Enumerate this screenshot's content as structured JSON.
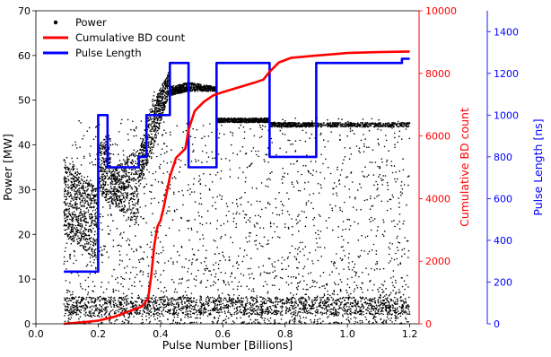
{
  "chart_data": {
    "type": "line",
    "title": "",
    "xlabel": "Pulse Number [Billions]",
    "x_ticks": [
      "0.0",
      "0.2",
      "0.4",
      "0.6",
      "0.8",
      "1.0",
      "1.2"
    ],
    "xlim": [
      0.0,
      1.23
    ],
    "axes": {
      "left": {
        "label": "Power [MW]",
        "ylim": [
          0,
          70
        ],
        "ticks": [
          "0",
          "10",
          "20",
          "30",
          "40",
          "50",
          "60",
          "70"
        ],
        "color": "#000000"
      },
      "right1": {
        "label": "Cumulative BD count",
        "ylim": [
          0,
          10000
        ],
        "ticks": [
          "0",
          "2000",
          "4000",
          "6000",
          "8000",
          "10000"
        ],
        "color": "#ff0000"
      },
      "right2": {
        "label": "Pulse Length [ns]",
        "ylim": [
          0,
          1500
        ],
        "ticks": [
          "0",
          "200",
          "400",
          "600",
          "800",
          "1000",
          "1200",
          "1400"
        ],
        "color": "#0000ff"
      }
    },
    "legend": {
      "placement": "top-left",
      "entries": [
        {
          "label": "Power",
          "marker": "dot",
          "color": "#000000"
        },
        {
          "label": "Cumulative BD count",
          "marker": "line",
          "color": "#ff0000"
        },
        {
          "label": "Pulse Length",
          "marker": "line",
          "color": "#0000ff"
        }
      ]
    },
    "series": [
      {
        "name": "Pulse Length",
        "axis": "right2",
        "kind": "step",
        "color": "#0000ff",
        "points": [
          [
            0.09,
            250
          ],
          [
            0.2,
            250
          ],
          [
            0.2,
            1000
          ],
          [
            0.23,
            1000
          ],
          [
            0.23,
            750
          ],
          [
            0.33,
            750
          ],
          [
            0.33,
            800
          ],
          [
            0.355,
            800
          ],
          [
            0.355,
            1000
          ],
          [
            0.38,
            1000
          ],
          [
            0.38,
            1000
          ],
          [
            0.43,
            1000
          ],
          [
            0.43,
            1250
          ],
          [
            0.49,
            1250
          ],
          [
            0.49,
            750
          ],
          [
            0.58,
            750
          ],
          [
            0.58,
            1250
          ],
          [
            0.75,
            1250
          ],
          [
            0.75,
            800
          ],
          [
            0.9,
            800
          ],
          [
            0.9,
            1250
          ],
          [
            1.175,
            1250
          ],
          [
            1.175,
            1270
          ],
          [
            1.2,
            1270
          ]
        ]
      },
      {
        "name": "Cumulative BD count",
        "axis": "right1",
        "kind": "line",
        "color": "#ff0000",
        "points": [
          [
            0.09,
            0
          ],
          [
            0.15,
            50
          ],
          [
            0.2,
            100
          ],
          [
            0.25,
            220
          ],
          [
            0.3,
            400
          ],
          [
            0.34,
            550
          ],
          [
            0.36,
            800
          ],
          [
            0.37,
            1500
          ],
          [
            0.38,
            2500
          ],
          [
            0.39,
            3100
          ],
          [
            0.4,
            3300
          ],
          [
            0.41,
            3700
          ],
          [
            0.43,
            4700
          ],
          [
            0.45,
            5300
          ],
          [
            0.48,
            5600
          ],
          [
            0.49,
            6200
          ],
          [
            0.51,
            6800
          ],
          [
            0.54,
            7100
          ],
          [
            0.57,
            7300
          ],
          [
            0.6,
            7400
          ],
          [
            0.65,
            7550
          ],
          [
            0.7,
            7700
          ],
          [
            0.73,
            7800
          ],
          [
            0.75,
            8050
          ],
          [
            0.78,
            8350
          ],
          [
            0.82,
            8500
          ],
          [
            0.9,
            8570
          ],
          [
            1.0,
            8650
          ],
          [
            1.1,
            8680
          ],
          [
            1.2,
            8700
          ]
        ]
      }
    ],
    "scatter": {
      "name": "Power",
      "axis": "left",
      "color": "#000000",
      "regions": [
        {
          "x": [
            0.09,
            0.2
          ],
          "y_start": [
            20,
            37
          ],
          "y_end": [
            14,
            30
          ],
          "n": 700
        },
        {
          "x": [
            0.2,
            0.24
          ],
          "y_start": [
            30,
            40
          ],
          "y_end": [
            26,
            43
          ],
          "n": 250
        },
        {
          "x": [
            0.24,
            0.33
          ],
          "y_start": [
            27,
            34
          ],
          "y_end": [
            22,
            40
          ],
          "n": 450
        },
        {
          "x": [
            0.33,
            0.38
          ],
          "y_start": [
            30,
            38
          ],
          "y_end": [
            40,
            52
          ],
          "n": 250
        },
        {
          "x": [
            0.38,
            0.43
          ],
          "y_start": [
            40,
            50
          ],
          "y_end": [
            52,
            57
          ],
          "n": 350
        },
        {
          "x": [
            0.43,
            0.49
          ],
          "y_start": [
            51,
            53
          ],
          "y_end": [
            52,
            54
          ],
          "n": 300
        },
        {
          "x": [
            0.49,
            0.58
          ],
          "y_start": [
            52,
            54
          ],
          "y_end": [
            52,
            53
          ],
          "n": 300
        },
        {
          "x": [
            0.58,
            0.75
          ],
          "y_start": [
            45,
            46
          ],
          "y_end": [
            45,
            46
          ],
          "n": 500
        },
        {
          "x": [
            0.75,
            0.9
          ],
          "y_start": [
            44,
            45
          ],
          "y_end": [
            44,
            45
          ],
          "n": 350
        },
        {
          "x": [
            0.9,
            1.2
          ],
          "y_start": [
            44,
            45
          ],
          "y_end": [
            44,
            45
          ],
          "n": 400
        }
      ],
      "background": {
        "x": [
          0.09,
          1.2
        ],
        "y": [
          0,
          46
        ],
        "n": 2200
      },
      "low_band": {
        "x": [
          0.09,
          1.2
        ],
        "y": [
          2,
          6
        ],
        "n": 1600
      }
    }
  }
}
